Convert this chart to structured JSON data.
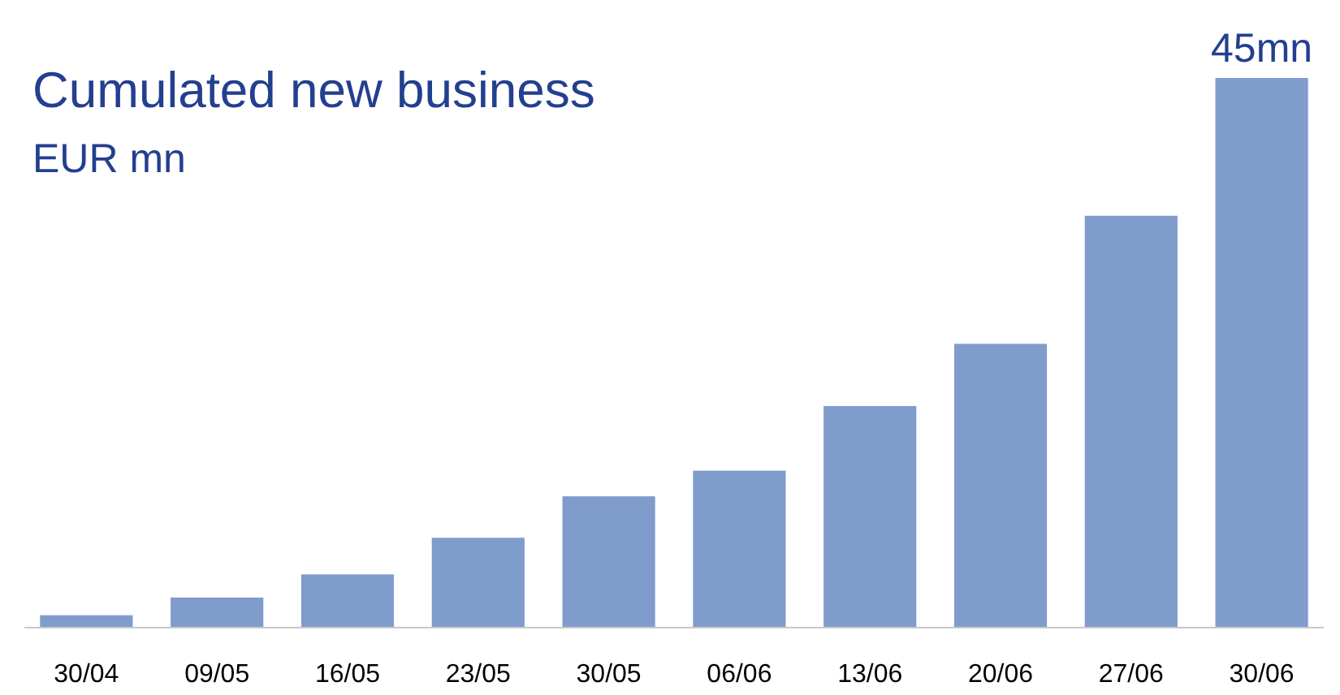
{
  "chart_data": {
    "type": "bar",
    "title": "Cumulated new business",
    "subtitle": "EUR mn",
    "categories": [
      "30/04",
      "09/05",
      "16/05",
      "23/05",
      "30/05",
      "06/06",
      "13/06",
      "20/06",
      "27/06",
      "30/06"
    ],
    "values": [
      0.95,
      2.4,
      4.3,
      7.3,
      10.7,
      12.8,
      18.1,
      23.2,
      33.7,
      45
    ],
    "value_labels": [
      null,
      null,
      null,
      null,
      null,
      null,
      null,
      null,
      null,
      "45mn"
    ],
    "color": "#809ccd"
  }
}
